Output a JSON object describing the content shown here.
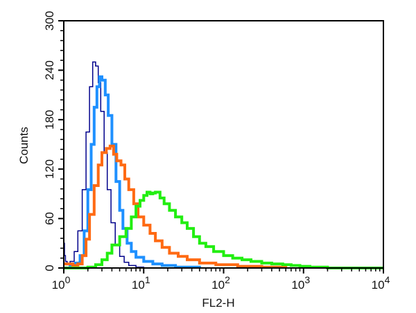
{
  "chart_data": {
    "type": "line",
    "title": "",
    "xlabel": "FL2-H",
    "ylabel": "Counts",
    "xscale": "log",
    "xlim": [
      1,
      10000
    ],
    "ylim": [
      0,
      300
    ],
    "x_ticks": [
      {
        "base": "10",
        "exp": "0",
        "value": 1
      },
      {
        "base": "10",
        "exp": "1",
        "value": 10
      },
      {
        "base": "10",
        "exp": "2",
        "value": 100
      },
      {
        "base": "10",
        "exp": "3",
        "value": 1000
      },
      {
        "base": "10",
        "exp": "4",
        "value": 10000
      }
    ],
    "y_ticks": [
      "0",
      "60",
      "120",
      "180",
      "240",
      "300"
    ],
    "grid": false,
    "series": [
      {
        "color": "#00008b",
        "width": 1.5,
        "x": [
          1.0,
          1.02,
          1.05,
          1.1,
          1.2,
          1.35,
          1.5,
          1.7,
          1.9,
          2.1,
          2.3,
          2.5,
          2.7,
          2.9,
          3.2,
          3.5,
          3.9,
          4.4,
          5.0,
          5.7,
          6.5,
          8,
          10,
          15,
          30
        ],
        "y": [
          30,
          15,
          8,
          5,
          8,
          20,
          45,
          95,
          165,
          220,
          250,
          245,
          225,
          190,
          140,
          95,
          55,
          28,
          14,
          7,
          3,
          1,
          0,
          0,
          0
        ]
      },
      {
        "color": "#1e90ff",
        "width": 4,
        "x": [
          1.0,
          1.2,
          1.4,
          1.6,
          1.8,
          2.0,
          2.2,
          2.4,
          2.6,
          2.8,
          3.0,
          3.3,
          3.6,
          4.0,
          4.5,
          5.0,
          5.5,
          6.2,
          7,
          8,
          10,
          13,
          17,
          25,
          50
        ],
        "y": [
          5,
          3,
          6,
          15,
          45,
          95,
          150,
          195,
          220,
          232,
          228,
          210,
          185,
          150,
          105,
          70,
          48,
          30,
          20,
          13,
          8,
          5,
          3,
          1,
          0
        ]
      },
      {
        "color": "#ff6a13",
        "width": 4,
        "x": [
          1.0,
          1.3,
          1.5,
          1.7,
          1.9,
          2.1,
          2.4,
          2.7,
          3.0,
          3.4,
          3.8,
          4.2,
          4.6,
          5.2,
          5.8,
          6.5,
          7.5,
          8.5,
          10,
          12,
          14,
          17,
          21,
          27,
          35,
          50,
          80,
          150,
          300,
          600
        ],
        "y": [
          5,
          3,
          5,
          15,
          35,
          65,
          100,
          125,
          140,
          145,
          148,
          138,
          130,
          125,
          108,
          95,
          78,
          62,
          52,
          42,
          33,
          25,
          18,
          14,
          10,
          6,
          4,
          2,
          1,
          0
        ]
      },
      {
        "color": "#22ee11",
        "width": 4,
        "x": [
          1.0,
          1.5,
          2.0,
          2.5,
          3.0,
          3.5,
          4.0,
          5.0,
          6.0,
          7.0,
          8.0,
          9.0,
          10,
          11,
          12,
          13,
          14,
          16,
          18,
          21,
          25,
          30,
          35,
          42,
          50,
          60,
          75,
          100,
          130,
          170,
          220,
          300,
          400,
          550,
          700,
          900,
          1200,
          2000,
          10000
        ],
        "y": [
          0,
          0,
          1,
          4,
          10,
          18,
          28,
          38,
          48,
          62,
          75,
          82,
          88,
          92,
          90,
          91,
          92,
          85,
          78,
          70,
          62,
          55,
          48,
          38,
          30,
          26,
          20,
          15,
          12,
          10,
          8,
          6,
          5,
          4,
          3,
          2,
          1,
          0,
          0
        ]
      }
    ]
  }
}
